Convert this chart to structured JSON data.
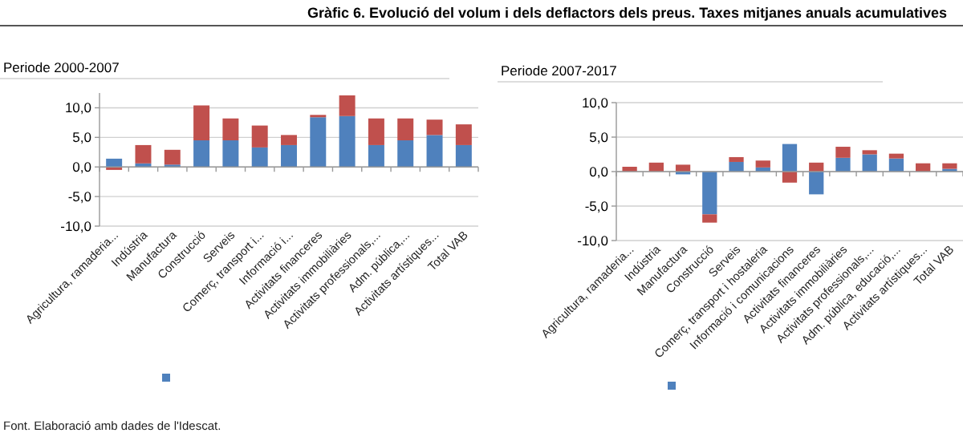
{
  "chart_data": [
    {
      "type": "bar",
      "title": "Gràfic 6. Evolució del volum i dels deflactors dels preus. Taxes mitjanes anuals acumulatives",
      "subtitle": "Periode 2000-2007",
      "stacked": true,
      "grid": "y",
      "categories": [
        "Agricultura, ramaderia...",
        "Indústria",
        "Manufactura",
        "Construcció",
        "Serveis",
        "Comerç, transport i...",
        "Informació i...",
        "Activitats financeres",
        "Activitats immobiliàries",
        "Activitats professionals,...",
        "Adm. pública,...",
        "Activitats artístiques...",
        "Total VAB"
      ],
      "series": [
        {
          "color": "#4f81bd",
          "values": [
            1.4,
            0.6,
            0.4,
            4.5,
            4.5,
            3.3,
            3.7,
            8.4,
            8.6,
            3.7,
            4.5,
            5.4,
            3.7
          ]
        },
        {
          "color": "#c0504d",
          "values": [
            -0.5,
            3.1,
            2.5,
            5.9,
            3.7,
            3.7,
            1.7,
            0.4,
            3.5,
            4.5,
            3.7,
            2.6,
            3.5
          ]
        }
      ],
      "ylim": [
        -10,
        12.5
      ],
      "yticks": [
        {
          "value": -10,
          "label": "-10,0"
        },
        {
          "value": -5,
          "label": "-5,0"
        },
        {
          "value": 0,
          "label": "0,0"
        },
        {
          "value": 5,
          "label": "5,0"
        },
        {
          "value": 10,
          "label": "10,0"
        }
      ],
      "annotations": [
        "Font. Elaboració amb dades de l'Idescat."
      ]
    },
    {
      "type": "bar",
      "title": "Periode 2007-2017",
      "stacked": true,
      "grid": "y",
      "categories": [
        "Agricultura, ramaderia...",
        "Indústria",
        "Manufactura",
        "Construcció",
        "Serveis",
        "Comerç, transport i hostaleria",
        "Informació i comunicacions",
        "Activitats financeres",
        "Activitats immobiliàries",
        "Activitats professionals,...",
        "Adm. pública, educació,...",
        "Activitats artístiques...",
        "Total VAB"
      ],
      "series": [
        {
          "color": "#4f81bd",
          "values": [
            null,
            0,
            -0.4,
            -6.2,
            1.4,
            0.6,
            4.0,
            -3.3,
            2.0,
            2.5,
            1.9,
            0,
            0.4
          ]
        },
        {
          "color": "#c0504d",
          "values": [
            0.7,
            1.3,
            1.0,
            -1.2,
            0.7,
            1.0,
            -1.6,
            1.3,
            1.6,
            0.6,
            0.7,
            1.2,
            0.8
          ]
        }
      ],
      "ylim": [
        -10,
        10
      ],
      "yticks": [
        {
          "value": -10,
          "label": "-10,0"
        },
        {
          "value": -5,
          "label": "-5,0"
        },
        {
          "value": 0,
          "label": "0,0"
        },
        {
          "value": 5,
          "label": "5,0"
        },
        {
          "value": 10,
          "label": "10,0"
        }
      ]
    }
  ]
}
